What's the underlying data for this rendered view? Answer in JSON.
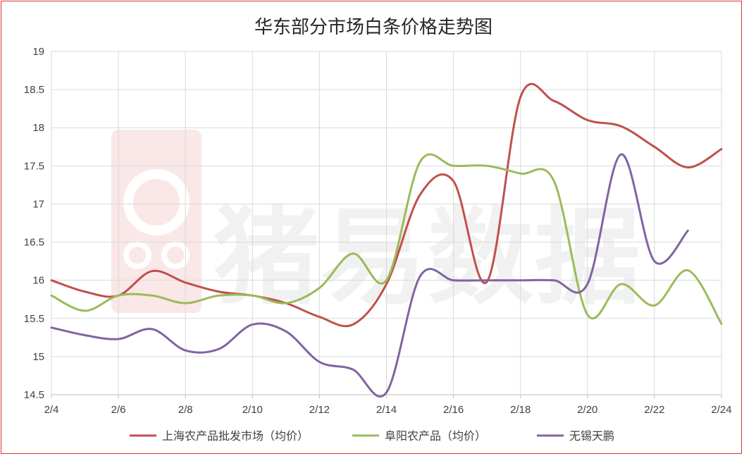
{
  "chart_data": {
    "type": "line",
    "title": "华东部分市场白条价格走势图",
    "watermark": "猪易数据",
    "xlabel": "",
    "ylabel": "",
    "x_tick_labels": [
      "2/4",
      "2/6",
      "2/8",
      "2/10",
      "2/12",
      "2/14",
      "2/16",
      "2/18",
      "2/20",
      "2/22",
      "2/24"
    ],
    "x_days": [
      4,
      5,
      6,
      7,
      8,
      9,
      10,
      11,
      12,
      13,
      14,
      15,
      16,
      17,
      18,
      19,
      20,
      21,
      22,
      23,
      24
    ],
    "ylim": [
      14.5,
      19
    ],
    "y_ticks": [
      14.5,
      15,
      15.5,
      16,
      16.5,
      17,
      17.5,
      18,
      18.5,
      19
    ],
    "grid": true,
    "legend_position": "bottom",
    "series": [
      {
        "name": "上海农产品批发市场（均价）",
        "color": "#c0504d",
        "values": [
          16.0,
          15.85,
          15.8,
          16.12,
          15.97,
          15.85,
          15.8,
          15.7,
          15.52,
          15.42,
          15.95,
          17.12,
          17.3,
          15.98,
          18.4,
          18.35,
          18.1,
          18.02,
          17.75,
          17.48,
          17.72
        ]
      },
      {
        "name": "阜阳农产品（均价）",
        "color": "#9bbb59",
        "values": [
          15.8,
          15.6,
          15.8,
          15.8,
          15.7,
          15.8,
          15.8,
          15.7,
          15.9,
          16.35,
          16.0,
          17.55,
          17.5,
          17.5,
          17.4,
          17.3,
          15.55,
          15.95,
          15.67,
          16.13,
          15.43
        ]
      },
      {
        "name": "无锡天鹏",
        "color": "#8064a2",
        "values": [
          15.38,
          15.28,
          15.23,
          15.36,
          15.08,
          15.1,
          15.42,
          15.33,
          14.93,
          14.83,
          14.53,
          16.05,
          16.0,
          16.0,
          16.0,
          16.0,
          15.95,
          17.65,
          16.25,
          16.65,
          null
        ]
      }
    ]
  }
}
